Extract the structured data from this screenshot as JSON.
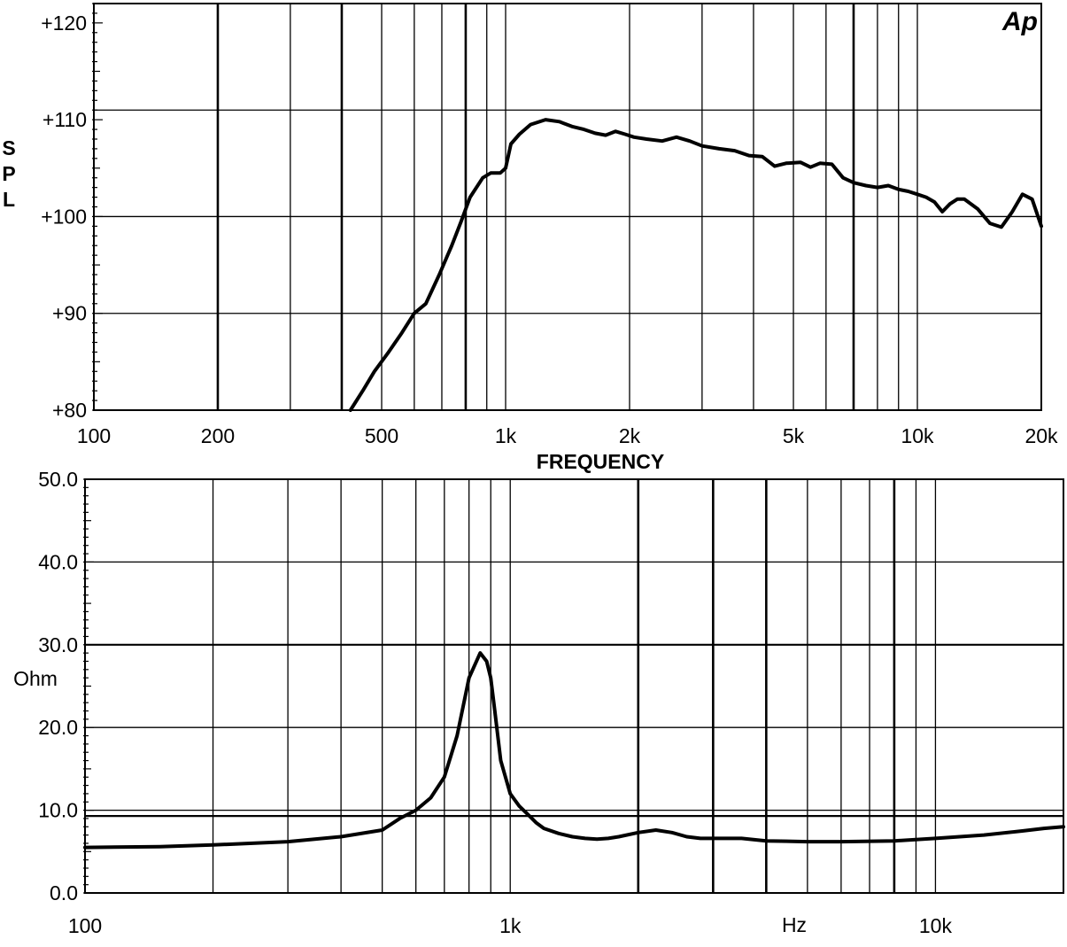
{
  "logo": "Ap",
  "chart_data": [
    {
      "type": "line",
      "xscale": "log",
      "xlim": [
        100,
        20000
      ],
      "ylim": [
        80,
        122
      ],
      "xlabel": "FREQUENCY",
      "ylabel": "SPL",
      "ylabel_letters": [
        "S",
        "P",
        "L"
      ],
      "yticks": [
        {
          "value": 120,
          "label": "+120"
        },
        {
          "value": 110,
          "label": "+110"
        },
        {
          "value": 100,
          "label": "+100"
        },
        {
          "value": 90,
          "label": "+90"
        },
        {
          "value": 80,
          "label": "+80"
        }
      ],
      "xticks": [
        {
          "value": 100,
          "label": "100"
        },
        {
          "value": 200,
          "label": "200"
        },
        {
          "value": 500,
          "label": "500"
        },
        {
          "value": 1000,
          "label": "1k"
        },
        {
          "value": 2000,
          "label": "2k"
        },
        {
          "value": 5000,
          "label": "5k"
        },
        {
          "value": 10000,
          "label": "10k"
        },
        {
          "value": 20000,
          "label": "20k"
        }
      ],
      "grid_x": [
        200,
        300,
        400,
        500,
        600,
        700,
        800,
        900,
        1000,
        2000,
        3000,
        4000,
        5000,
        6000,
        7000,
        8000,
        9000,
        10000
      ],
      "grid_x_major": [
        200,
        400,
        800,
        7000
      ],
      "grid_y": [
        90,
        100,
        111
      ],
      "series": [
        {
          "x": [
            420,
            450,
            480,
            520,
            560,
            600,
            640,
            690,
            740,
            780,
            820,
            880,
            920,
            970,
            1000,
            1030,
            1080,
            1150,
            1250,
            1350,
            1450,
            1550,
            1650,
            1750,
            1850,
            1950,
            2050,
            2200,
            2400,
            2600,
            2800,
            3000,
            3300,
            3600,
            3900,
            4200,
            4500,
            4800,
            5200,
            5500,
            5800,
            6200,
            6600,
            7000,
            7500,
            8000,
            8500,
            9000,
            9500,
            10000,
            10500,
            11000,
            11500,
            12000,
            12500,
            13000,
            14000,
            15000,
            16000,
            17000,
            18000,
            19000,
            20000
          ],
          "y": [
            80,
            82,
            84,
            86,
            88,
            90,
            91,
            94,
            97,
            99.5,
            102,
            104,
            104.5,
            104.5,
            105,
            107.5,
            108.5,
            109.5,
            110,
            109.8,
            109.3,
            109,
            108.6,
            108.4,
            108.8,
            108.5,
            108.2,
            108,
            107.8,
            108.2,
            107.8,
            107.3,
            107,
            106.8,
            106.3,
            106.2,
            105.2,
            105.5,
            105.6,
            105.1,
            105.5,
            105.4,
            104,
            103.5,
            103.2,
            103,
            103.2,
            102.8,
            102.6,
            102.3,
            102,
            101.5,
            100.5,
            101.3,
            101.8,
            101.8,
            100.8,
            99.3,
            98.9,
            100.5,
            102.3,
            101.8,
            99
          ]
        }
      ]
    },
    {
      "type": "line",
      "xscale": "log",
      "xlim": [
        100,
        20000
      ],
      "ylim": [
        0,
        50
      ],
      "xlabel": "Hz",
      "ylabel": "Ohm",
      "yticks": [
        {
          "value": 50,
          "label": "50.0"
        },
        {
          "value": 40,
          "label": "40.0"
        },
        {
          "value": 30,
          "label": "30.0"
        },
        {
          "value": 20,
          "label": "20.0"
        },
        {
          "value": 10,
          "label": "10.0"
        },
        {
          "value": 0,
          "label": "0.0"
        }
      ],
      "xticks": [
        {
          "value": 100,
          "label": "100"
        },
        {
          "value": 1000,
          "label": "1k"
        },
        {
          "value": 10000,
          "label": "10k"
        }
      ],
      "grid_x": [
        200,
        300,
        400,
        500,
        600,
        700,
        800,
        900,
        1000,
        2000,
        3000,
        4000,
        5000,
        6000,
        7000,
        8000,
        9000,
        10000
      ],
      "grid_x_major": [
        2000,
        3000,
        4000,
        8000
      ],
      "grid_y": [
        10,
        20,
        30,
        40
      ],
      "grid_y_major": [
        9.3,
        30
      ],
      "series": [
        {
          "x": [
            100,
            150,
            200,
            300,
            400,
            500,
            550,
            600,
            650,
            700,
            750,
            800,
            850,
            880,
            900,
            920,
            950,
            1000,
            1050,
            1100,
            1150,
            1200,
            1300,
            1400,
            1500,
            1600,
            1700,
            1800,
            2000,
            2200,
            2400,
            2600,
            2800,
            3000,
            3500,
            4000,
            5000,
            6000,
            8000,
            10000,
            13000,
            16000,
            18000,
            20000
          ],
          "y": [
            5.5,
            5.6,
            5.8,
            6.2,
            6.8,
            7.6,
            9.0,
            10.0,
            11.5,
            14,
            19,
            26,
            29,
            28,
            26,
            22,
            16,
            12,
            10.5,
            9.5,
            8.5,
            7.8,
            7.2,
            6.8,
            6.6,
            6.5,
            6.6,
            6.8,
            7.3,
            7.6,
            7.3,
            6.8,
            6.6,
            6.6,
            6.6,
            6.3,
            6.2,
            6.2,
            6.3,
            6.6,
            7.0,
            7.5,
            7.8,
            8.0
          ]
        }
      ]
    }
  ]
}
